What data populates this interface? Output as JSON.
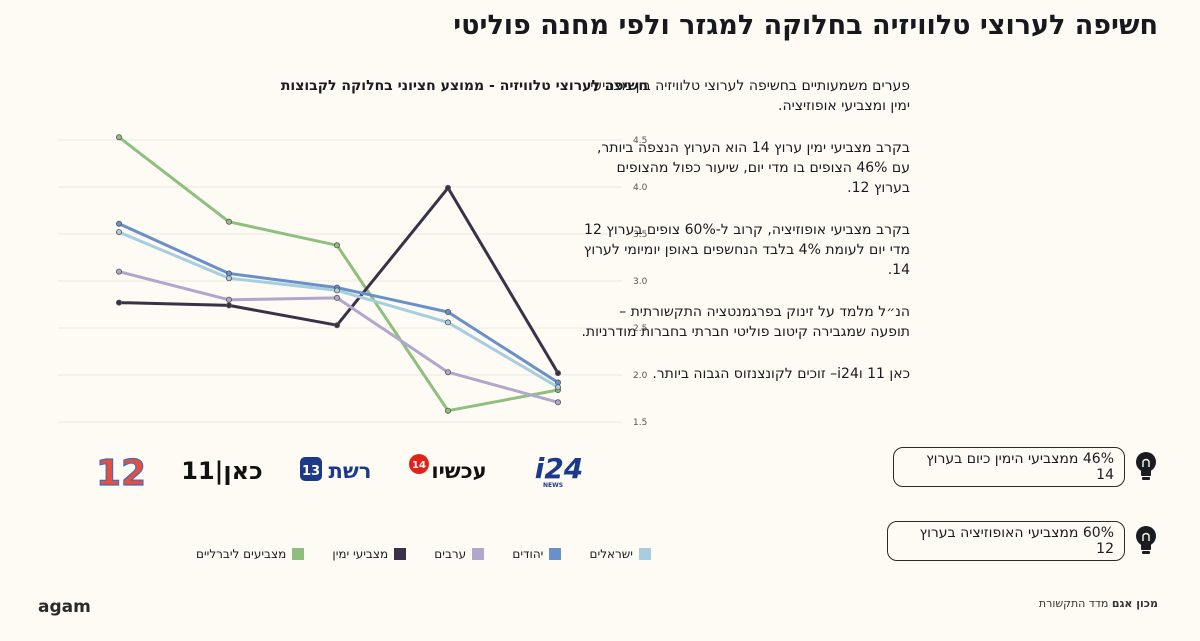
{
  "page": {
    "title": "חשיפה לערוצי טלוויזיה בחלוקה למגזר ולפי מחנה פוליטי",
    "brand": "agam",
    "footer": {
      "org": "מכון אגם",
      "product": "מדד התקשורת"
    }
  },
  "text_panel": {
    "paragraphs": [
      "פערים משמעותיים בחשיפה לערוצי טלוויזיה בין מצביעי ימין ומצביעי אופוזיציה.",
      "בקרב מצביעי ימין ערוץ 14 הוא הערוץ הנצפה ביותר, עם 46% הצופים בו מדי יום, שיעור כפול מהצופים בערוץ 12.",
      "בקרב מצביעי אופוזיציה, קרוב ל-60% צופים בערוץ 12 מדי יום לעומת 4% בלבד הנחשפים באופן יומיומי לערוץ 14.",
      "הנ״ל מלמד על זינוק בפרגמנטציה התקשורתית – תופעה שמגבירה קיטוב פוליטי חברתי בחברות מודרניות.",
      "כאן 11 וi24– זוכים לקונצנזוס הגבוה ביותר."
    ]
  },
  "callouts": [
    {
      "text": "46% ממצביעי הימין כיום בערוץ 14",
      "icon": "lightbulb-icon"
    },
    {
      "text": "60% ממצביעי האופוזיציה בערוץ 12",
      "icon": "lightbulb-icon"
    }
  ],
  "channel_logos": [
    {
      "channel": "12",
      "label": "12"
    },
    {
      "channel": "kan11",
      "label": "כאן|11"
    },
    {
      "channel": "reshet13",
      "label": "רשת",
      "badge": "13"
    },
    {
      "channel": "now14",
      "label": "עכשיו",
      "badge": "14"
    },
    {
      "channel": "i24",
      "label": "i24",
      "sub": "NEWS"
    }
  ],
  "chart_data": {
    "type": "line",
    "title": "חשיפה לערוצי טלוויזיה - ממוצע חציוני בחלוקה לקבוצות",
    "categories": [
      "12",
      "כאן 11",
      "רשת 13",
      "עכשיו 14",
      "i24NEWS"
    ],
    "ylim": [
      1.5,
      4.5
    ],
    "yticks": [
      "1.5",
      "2.0",
      "2.5",
      "3.0",
      "3.5",
      "4.0",
      "4.5"
    ],
    "grid": true,
    "legend_position": "bottom",
    "series": [
      {
        "name": "מצביעים ליברליים",
        "color": "#8fbf7f",
        "values": [
          4.53,
          3.63,
          3.38,
          1.62,
          1.84
        ]
      },
      {
        "name": "מצביעי ימין",
        "color": "#3a3148",
        "values": [
          2.77,
          2.74,
          2.53,
          3.99,
          2.02
        ]
      },
      {
        "name": "ערבים",
        "color": "#b1a6cc",
        "values": [
          3.1,
          2.8,
          2.82,
          2.03,
          1.71
        ]
      },
      {
        "name": "יהודים",
        "color": "#6990c8",
        "values": [
          3.61,
          3.08,
          2.93,
          2.67,
          1.92
        ]
      },
      {
        "name": "ישראלים",
        "color": "#a7cde0",
        "values": [
          3.52,
          3.03,
          2.9,
          2.56,
          1.87
        ]
      }
    ]
  }
}
